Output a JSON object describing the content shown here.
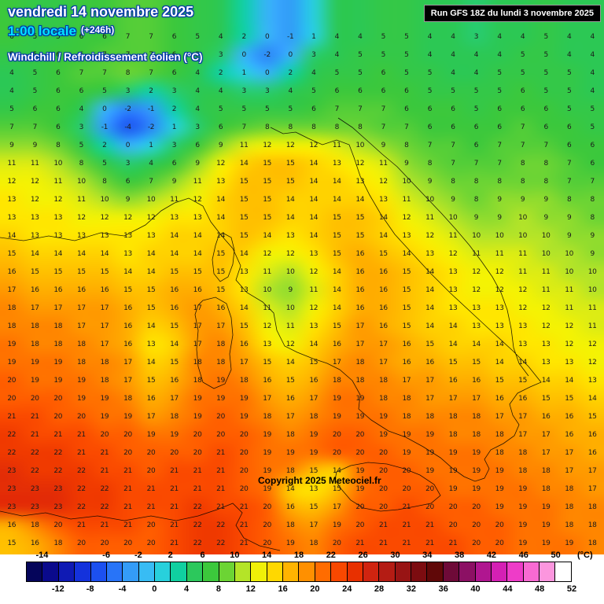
{
  "header": {
    "date_line": "vendredi 14 novembre 2025",
    "time_line": "1:00 locale",
    "forecast_offset": "(+246h)",
    "variable_line": "Windchill / Refroidissement éolien (°C)",
    "run_info": "Run GFS 18Z du lundi 3 novembre 2025"
  },
  "copyright": "Copyright 2025 Meteociel.fr",
  "colors": {
    "title_fill": "#ffffff",
    "title_outline": "#0033aa",
    "time_fill": "#00e4ff",
    "run_bg": "#000000",
    "run_fg": "#ffffff",
    "number_color": "#1b1b1b"
  },
  "colorbar": {
    "unit": "(°C)",
    "min": -16,
    "max": 52,
    "step": 2,
    "segment_colors": [
      "#05055a",
      "#0a0a8c",
      "#0f1ab4",
      "#1432dc",
      "#1c50f0",
      "#2874f8",
      "#349cf8",
      "#38bcf4",
      "#28d0dc",
      "#10d0a0",
      "#2cc85c",
      "#3cc83c",
      "#6cd434",
      "#b4e428",
      "#f0f008",
      "#ffd800",
      "#ffb400",
      "#ff9000",
      "#ff6c00",
      "#f84800",
      "#e83000",
      "#d02410",
      "#b41c14",
      "#981414",
      "#7c0c10",
      "#600808",
      "#6e0a38",
      "#8c1064",
      "#b01690",
      "#d420b4",
      "#ee3cc8",
      "#f86ad2",
      "#fc96de",
      "#ffffff"
    ],
    "top_labels": [
      -14,
      -6,
      -2,
      2,
      6,
      10,
      14,
      18,
      22,
      26,
      30,
      34,
      38,
      42,
      46,
      50
    ],
    "bottom_labels": [
      -12,
      -8,
      -4,
      0,
      4,
      8,
      12,
      16,
      20,
      24,
      28,
      32,
      36,
      40,
      44,
      48,
      52
    ]
  },
  "value_color_stops": [
    [
      -10,
      "#0a14a0"
    ],
    [
      -6,
      "#1430d8"
    ],
    [
      -4,
      "#1c54f0"
    ],
    [
      -2,
      "#2c84f8"
    ],
    [
      0,
      "#38b4f8"
    ],
    [
      1,
      "#28d0e0"
    ],
    [
      2,
      "#10d0a8"
    ],
    [
      3,
      "#28cc70"
    ],
    [
      4,
      "#2cc854"
    ],
    [
      6,
      "#3cc83c"
    ],
    [
      8,
      "#6cd434"
    ],
    [
      10,
      "#b4e428"
    ],
    [
      11,
      "#dcec14"
    ],
    [
      12,
      "#f4f204"
    ],
    [
      13,
      "#ffe600"
    ],
    [
      14,
      "#ffd200"
    ],
    [
      15,
      "#ffc000"
    ],
    [
      16,
      "#ffae00"
    ],
    [
      17,
      "#ff9a00"
    ],
    [
      18,
      "#ff8600"
    ],
    [
      19,
      "#ff7200"
    ],
    [
      20,
      "#ff5e00"
    ],
    [
      21,
      "#fa4a00"
    ],
    [
      22,
      "#f03a00"
    ],
    [
      23,
      "#e42e06"
    ],
    [
      24,
      "#d62812"
    ]
  ],
  "map_grid": {
    "cols": 26,
    "rows": 29,
    "values": [
      "6 5 5 6 6 7 7 6 5 4 2 0 -1 1 4 4 5 5 4 4 3 4 4 5 4 4",
      "5 5 6 6 7 7 7 6 5 3 0 -2 0 3 4 5 5 5 4 4 4 4 5 5 4 4",
      "4 5 6 7 7 8 7 6 4 2 1 0 2 4 5 5 6 5 5 4 4 5 5 5 5 4",
      "4 5 6 6 5 3 2 3 4 4 3 3 4 5 6 6 6 6 5 5 5 5 6 5 5 4",
      "5 6 6 4 0 -2 -1 2 4 5 5 5 5 6 7 7 7 6 6 6 5 6 6 6 5 5",
      "7 7 6 3 -1 -4 -2 1 3 6 7 8 8 8 8 8 7 7 6 6 6 6 7 6 6 5",
      "9 9 8 5 2 0 1 3 6 9 11 12 12 12 11 10 9 8 7 7 6 7 7 7 6 6",
      "11 11 10 8 5 3 4 6 9 12 14 15 15 14 13 12 11 9 8 7 7 7 8 8 7 6",
      "12 12 11 10 8 6 7 9 11 13 15 15 15 14 14 13 12 10 9 8 8 8 8 8 7 7",
      "13 12 12 11 10 9 10 11 12 14 15 15 14 14 14 14 13 11 10 9 8 9 9 9 8 8",
      "13 13 13 12 12 12 12 13 13 14 15 15 14 14 15 15 14 12 11 10 9 9 10 9 9 8",
      "14 13 13 13 13 13 13 14 14 14 15 14 13 14 15 15 14 13 12 11 10 10 10 10 9 9",
      "15 14 14 14 14 13 14 14 14 15 14 12 12 13 15 16 15 14 13 12 11 11 11 10 10 9",
      "16 15 15 15 15 14 14 15 15 15 13 11 10 12 14 16 16 15 14 13 12 12 11 11 10 10",
      "17 16 16 16 16 15 15 16 16 15 13 10 9 11 14 16 16 15 14 13 12 12 12 11 11 10",
      "18 17 17 17 17 16 15 16 17 16 14 11 10 12 14 16 16 15 14 13 13 13 12 12 11 11",
      "18 18 18 17 17 16 14 15 17 17 15 12 11 13 15 17 16 15 14 14 13 13 13 12 12 11",
      "19 18 18 18 17 16 13 14 17 18 16 13 12 14 16 17 17 16 15 14 14 14 13 13 12 12",
      "19 19 19 18 18 17 14 15 18 18 17 15 14 15 17 18 17 16 16 15 15 14 14 13 13 12",
      "20 19 19 19 18 17 15 16 18 19 18 16 15 16 18 18 18 17 17 16 16 15 15 14 14 13",
      "20 20 20 19 19 18 16 17 19 19 19 17 16 17 19 19 18 18 17 17 17 16 16 15 15 14",
      "21 21 20 20 19 19 17 18 19 20 19 18 17 18 19 19 19 18 18 18 18 17 17 16 16 15",
      "22 21 21 21 20 20 19 19 20 20 20 19 18 19 20 20 19 19 19 18 18 18 17 17 16 16",
      "22 22 22 21 21 20 20 20 20 21 20 19 19 19 20 20 20 19 19 19 19 18 18 17 17 16",
      "23 22 22 22 21 21 20 21 21 21 20 19 18 15 14 19 20 20 19 19 19 19 18 18 17 17",
      "23 23 23 22 22 21 21 21 21 21 20 19 14 13 15 19 20 20 20 19 19 19 19 18 18 17",
      "23 23 23 22 22 21 21 21 22 21 21 20 16 15 17 20 20 21 20 20 20 19 19 19 18 18",
      "16 18 20 21 21 21 20 21 22 22 21 20 18 17 19 20 21 21 21 20 20 20 19 19 18 18",
      "15 16 18 20 20 20 20 21 22 22 21 20 19 18 20 21 21 21 21 21 20 20 19 19 19 18"
    ]
  }
}
